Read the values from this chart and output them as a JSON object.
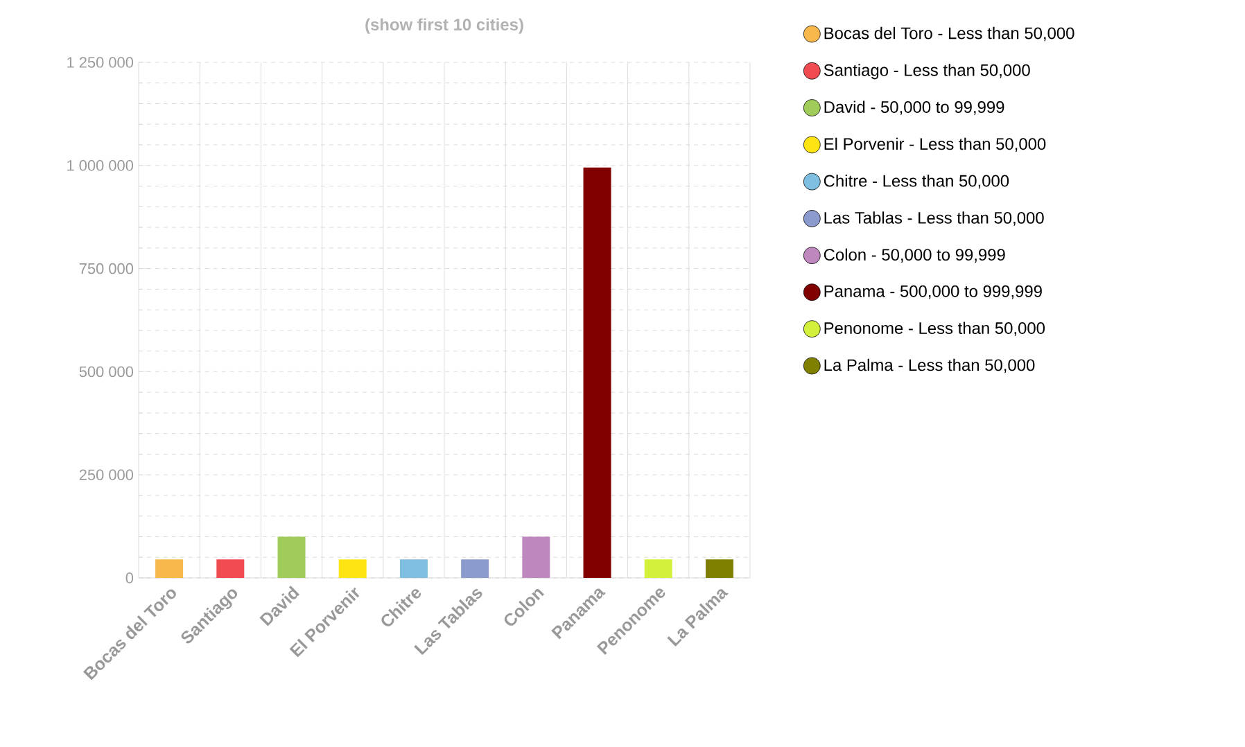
{
  "chart_data": {
    "type": "bar",
    "title": "(show first 10 cities)",
    "categories": [
      "Bocas del Toro",
      "Santiago",
      "David",
      "El Porvenir",
      "Chitre",
      "Las Tablas",
      "Colon",
      "Panama",
      "Penonome",
      "La Palma"
    ],
    "series": [
      {
        "name": "Bocas del Toro - Less than 50,000",
        "color": "#f8b84e",
        "values": [
          45000,
          null,
          null,
          null,
          null,
          null,
          null,
          null,
          null,
          null
        ]
      },
      {
        "name": "Santiago - Less than 50,000",
        "color": "#f04b50",
        "values": [
          null,
          45000,
          null,
          null,
          null,
          null,
          null,
          null,
          null,
          null
        ]
      },
      {
        "name": "David - 50,000 to 99,999",
        "color": "#a0cd5a",
        "values": [
          null,
          null,
          100000,
          null,
          null,
          null,
          null,
          null,
          null,
          null
        ]
      },
      {
        "name": "El Porvenir - Less than 50,000",
        "color": "#ffe414",
        "values": [
          null,
          null,
          null,
          45000,
          null,
          null,
          null,
          null,
          null,
          null
        ]
      },
      {
        "name": "Chitre - Less than 50,000",
        "color": "#7dbee1",
        "values": [
          null,
          null,
          null,
          null,
          45000,
          null,
          null,
          null,
          null,
          null
        ]
      },
      {
        "name": "Las Tablas - Less than 50,000",
        "color": "#8c9bcd",
        "values": [
          null,
          null,
          null,
          null,
          null,
          45000,
          null,
          null,
          null,
          null
        ]
      },
      {
        "name": "Colon - 50,000 to 99,999",
        "color": "#be87be",
        "values": [
          null,
          null,
          null,
          null,
          null,
          null,
          100000,
          null,
          null,
          null
        ]
      },
      {
        "name": "Panama - 500,000 to 999,999",
        "color": "#800000",
        "values": [
          null,
          null,
          null,
          null,
          null,
          null,
          null,
          995000,
          null,
          null
        ]
      },
      {
        "name": "Penonome - Less than 50,000",
        "color": "#d2f03c",
        "values": [
          null,
          null,
          null,
          null,
          null,
          null,
          null,
          null,
          45000,
          null
        ]
      },
      {
        "name": "La Palma - Less than 50,000",
        "color": "#808000",
        "values": [
          null,
          null,
          null,
          null,
          null,
          null,
          null,
          null,
          null,
          45000
        ]
      }
    ],
    "ylim": [
      0,
      1250000
    ],
    "yticks": [
      {
        "value": 0,
        "label": "0"
      },
      {
        "value": 250000,
        "label": "250 000"
      },
      {
        "value": 500000,
        "label": "500 000"
      },
      {
        "value": 750000,
        "label": "750 000"
      },
      {
        "value": 1000000,
        "label": "1 000 000"
      },
      {
        "value": 1250000,
        "label": "1 250 000"
      }
    ],
    "grid": true,
    "legend": "right"
  }
}
